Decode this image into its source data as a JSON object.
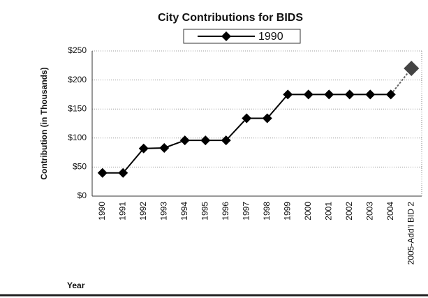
{
  "chart_data": {
    "type": "line",
    "title": "City Contributions for BIDS",
    "x_label": "Year",
    "y_label": "Contribution (in Thousands)",
    "categories": [
      "1990",
      "1991",
      "1992",
      "1993",
      "1994",
      "1995",
      "1996",
      "1997",
      "1998",
      "1999",
      "2000",
      "2001",
      "2002",
      "2003",
      "2004",
      "2005-Add'l BID 2"
    ],
    "series": [
      {
        "name": "1990",
        "color": "#000000",
        "values": [
          40,
          40,
          82,
          83,
          96,
          96,
          96,
          134,
          134,
          175,
          175,
          175,
          175,
          175,
          175,
          220
        ]
      }
    ],
    "ylim": [
      0,
      250
    ],
    "yticks": [
      {
        "value": 0,
        "label": "$0"
      },
      {
        "value": 50,
        "label": "$50"
      },
      {
        "value": 100,
        "label": "$100"
      },
      {
        "value": 150,
        "label": "$150"
      },
      {
        "value": 200,
        "label": "$200"
      },
      {
        "value": 250,
        "label": "$250"
      }
    ],
    "grid": true,
    "legend": "top"
  }
}
